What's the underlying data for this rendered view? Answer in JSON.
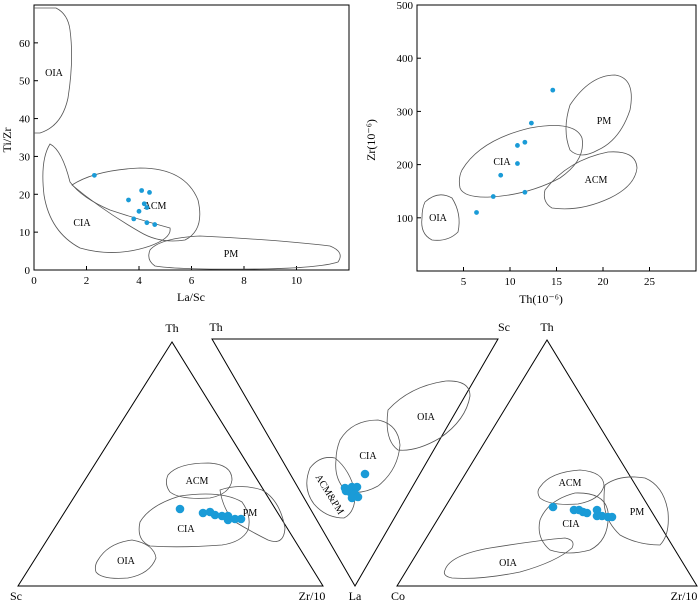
{
  "colors": {
    "points": "#1a9bd7",
    "field_lines": "#555555",
    "axes": "#000000"
  },
  "chart_data": [
    {
      "type": "scatter",
      "xlabel": "La/Sc",
      "ylabel": "Ti/Zr",
      "xlim": [
        0,
        12
      ],
      "ylim": [
        0,
        70
      ],
      "xticks": [
        "0",
        "2",
        "4",
        "6",
        "8",
        "10"
      ],
      "yticks": [
        "0",
        "10",
        "20",
        "30",
        "40",
        "50",
        "60"
      ],
      "fields": [
        "OIA",
        "ACM",
        "CIA",
        "PM"
      ],
      "points": [
        {
          "x": 2.3,
          "y": 25.0
        },
        {
          "x": 3.6,
          "y": 18.5
        },
        {
          "x": 4.1,
          "y": 21.0
        },
        {
          "x": 4.4,
          "y": 20.5
        },
        {
          "x": 4.2,
          "y": 17.5
        },
        {
          "x": 4.0,
          "y": 15.5
        },
        {
          "x": 4.3,
          "y": 16.5
        },
        {
          "x": 3.8,
          "y": 13.5
        },
        {
          "x": 4.3,
          "y": 12.5
        },
        {
          "x": 4.6,
          "y": 12.0
        }
      ]
    },
    {
      "type": "scatter",
      "xlabel": "Th(10⁻⁶)",
      "ylabel": "Zr(10⁻⁶)",
      "xlim": [
        0,
        30
      ],
      "ylim": [
        0,
        500
      ],
      "xticks": [
        "5",
        "10",
        "15",
        "20",
        "25"
      ],
      "yticks": [
        "100",
        "200",
        "300",
        "400",
        "500"
      ],
      "fields": [
        "OIA",
        "CIA",
        "PM",
        "ACM"
      ],
      "points": [
        {
          "x": 14.6,
          "y": 340
        },
        {
          "x": 12.3,
          "y": 278
        },
        {
          "x": 11.6,
          "y": 242
        },
        {
          "x": 10.8,
          "y": 236
        },
        {
          "x": 10.8,
          "y": 202
        },
        {
          "x": 9.0,
          "y": 180
        },
        {
          "x": 11.6,
          "y": 148
        },
        {
          "x": 8.2,
          "y": 140
        },
        {
          "x": 6.4,
          "y": 110
        }
      ]
    },
    {
      "type": "scatter",
      "subtype": "ternary",
      "vertices": {
        "top": "Th",
        "left": "Sc",
        "right": "Zr/10"
      },
      "fields": [
        "ACM",
        "PM",
        "CIA",
        "OIA"
      ],
      "points": [
        {
          "x": 180,
          "y": 509
        },
        {
          "x": 203,
          "y": 513
        },
        {
          "x": 210,
          "y": 512
        },
        {
          "x": 215,
          "y": 515
        },
        {
          "x": 222,
          "y": 516
        },
        {
          "x": 228,
          "y": 516
        },
        {
          "x": 228,
          "y": 520
        },
        {
          "x": 235,
          "y": 519
        },
        {
          "x": 241,
          "y": 519
        }
      ]
    },
    {
      "type": "scatter",
      "subtype": "ternary",
      "vertices": {
        "top_left": "Th",
        "top_right": "Sc",
        "bottom": "La"
      },
      "fields": [
        "OIA",
        "CIA",
        "ACM&PM"
      ],
      "points": [
        {
          "x": 365,
          "y": 474
        },
        {
          "x": 345,
          "y": 488
        },
        {
          "x": 352,
          "y": 487
        },
        {
          "x": 357,
          "y": 487
        },
        {
          "x": 350,
          "y": 492
        },
        {
          "x": 355,
          "y": 494
        },
        {
          "x": 358,
          "y": 497
        },
        {
          "x": 352,
          "y": 498
        },
        {
          "x": 346,
          "y": 491
        }
      ]
    },
    {
      "type": "scatter",
      "subtype": "ternary",
      "vertices": {
        "top": "Th",
        "left": "Co",
        "right": "Zr/10"
      },
      "fields": [
        "ACM",
        "CIA",
        "PM",
        "OIA"
      ],
      "points": [
        {
          "x": 553,
          "y": 507
        },
        {
          "x": 574,
          "y": 510
        },
        {
          "x": 579,
          "y": 510
        },
        {
          "x": 583,
          "y": 512
        },
        {
          "x": 587,
          "y": 513
        },
        {
          "x": 597,
          "y": 510
        },
        {
          "x": 597,
          "y": 516
        },
        {
          "x": 602,
          "y": 516
        },
        {
          "x": 608,
          "y": 517
        },
        {
          "x": 612,
          "y": 517
        }
      ]
    }
  ]
}
